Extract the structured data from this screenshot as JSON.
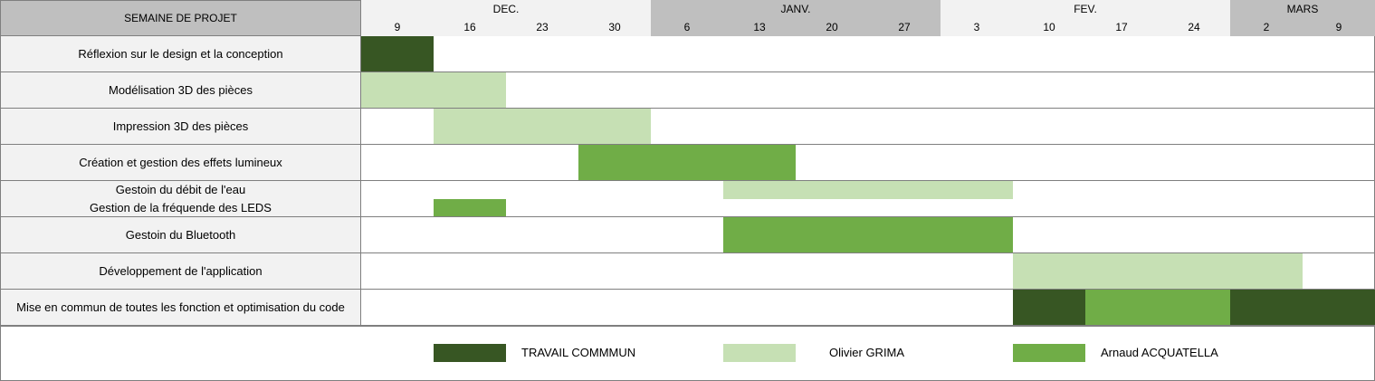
{
  "header": {
    "title": "SEMAINE DE PROJET"
  },
  "colors": {
    "travail_commun": "#375623",
    "olivier": "#c6e0b4",
    "arnaud": "#70ad47",
    "month_dark": "#bfbfbf",
    "month_light": "#f2f2f2"
  },
  "chart_data": {
    "type": "gantt",
    "months": [
      {
        "label": "DEC.",
        "start_week": 0,
        "span": 4,
        "shade": "light"
      },
      {
        "label": "JANV.",
        "start_week": 4,
        "span": 4,
        "shade": "dark"
      },
      {
        "label": "FEV.",
        "start_week": 8,
        "span": 4,
        "shade": "light"
      },
      {
        "label": "MARS",
        "start_week": 12,
        "span": 2,
        "shade": "dark"
      }
    ],
    "weeks": [
      "9",
      "16",
      "23",
      "30",
      "6",
      "13",
      "20",
      "27",
      "3",
      "10",
      "17",
      "24",
      "2",
      "9"
    ],
    "tasks": [
      {
        "lines": [
          "Réflexion sur le design et la conception"
        ],
        "bars": [
          {
            "start": 0,
            "end": 1,
            "owner": "travail_commun",
            "sub": "full"
          }
        ]
      },
      {
        "lines": [
          "Modélisation 3D des pièces"
        ],
        "bars": [
          {
            "start": 0,
            "end": 2,
            "owner": "olivier",
            "sub": "full"
          }
        ]
      },
      {
        "lines": [
          "Impression 3D des pièces"
        ],
        "bars": [
          {
            "start": 1,
            "end": 4,
            "owner": "olivier",
            "sub": "full"
          }
        ]
      },
      {
        "lines": [
          "Création et gestion des effets lumineux"
        ],
        "bars": [
          {
            "start": 3,
            "end": 6,
            "owner": "arnaud",
            "sub": "full"
          }
        ]
      },
      {
        "lines": [
          "Gestoin du débit de l'eau",
          "Gestion de la fréquende des LEDS"
        ],
        "bars": [
          {
            "start": 5,
            "end": 9,
            "owner": "olivier",
            "sub": "top"
          },
          {
            "start": 1,
            "end": 2,
            "owner": "arnaud",
            "sub": "bottom"
          }
        ]
      },
      {
        "lines": [
          "Gestoin du Bluetooth"
        ],
        "bars": [
          {
            "start": 5,
            "end": 9,
            "owner": "arnaud",
            "sub": "full"
          }
        ]
      },
      {
        "lines": [
          "Développement de l'application"
        ],
        "bars": [
          {
            "start": 9,
            "end": 13,
            "owner": "olivier",
            "sub": "full"
          }
        ]
      },
      {
        "lines": [
          "Mise en commun de toutes les fonction et optimisation du code"
        ],
        "bars": [
          {
            "start": 9,
            "end": 10,
            "owner": "travail_commun",
            "sub": "full"
          },
          {
            "start": 10,
            "end": 12,
            "owner": "arnaud",
            "sub": "full"
          },
          {
            "start": 12,
            "end": 14,
            "owner": "travail_commun",
            "sub": "full"
          }
        ]
      }
    ],
    "legend": [
      {
        "label": "TRAVAIL COMMMUN",
        "owner": "travail_commun"
      },
      {
        "label": "Olivier GRIMA",
        "owner": "olivier"
      },
      {
        "label": "Arnaud ACQUATELLA",
        "owner": "arnaud"
      }
    ]
  }
}
